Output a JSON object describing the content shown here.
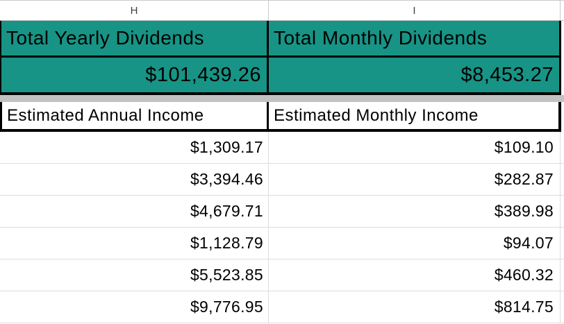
{
  "columns": {
    "h": "H",
    "i": "I"
  },
  "totals": {
    "yearly": {
      "label": "Total Yearly Dividends",
      "value": "$101,439.26"
    },
    "monthly": {
      "label": "Total Monthly Dividends",
      "value": "$8,453.27"
    }
  },
  "income": {
    "annual_header": "Estimated Annual Income",
    "monthly_header": "Estimated Monthly Income",
    "rows": [
      {
        "annual": "$1,309.17",
        "monthly": "$109.10"
      },
      {
        "annual": "$3,394.46",
        "monthly": "$282.87"
      },
      {
        "annual": "$4,679.71",
        "monthly": "$389.98"
      },
      {
        "annual": "$1,128.79",
        "monthly": "$94.07"
      },
      {
        "annual": "$5,523.85",
        "monthly": "$460.32"
      },
      {
        "annual": "$9,776.95",
        "monthly": "$814.75"
      }
    ]
  },
  "colors": {
    "highlight_teal": "#179485",
    "cell_border_black": "#000000",
    "gridline_gray": "#dcdcdc",
    "hidden_rows_strip_gray": "#c2c2c2",
    "column_header_text": "#3f3f3f"
  }
}
